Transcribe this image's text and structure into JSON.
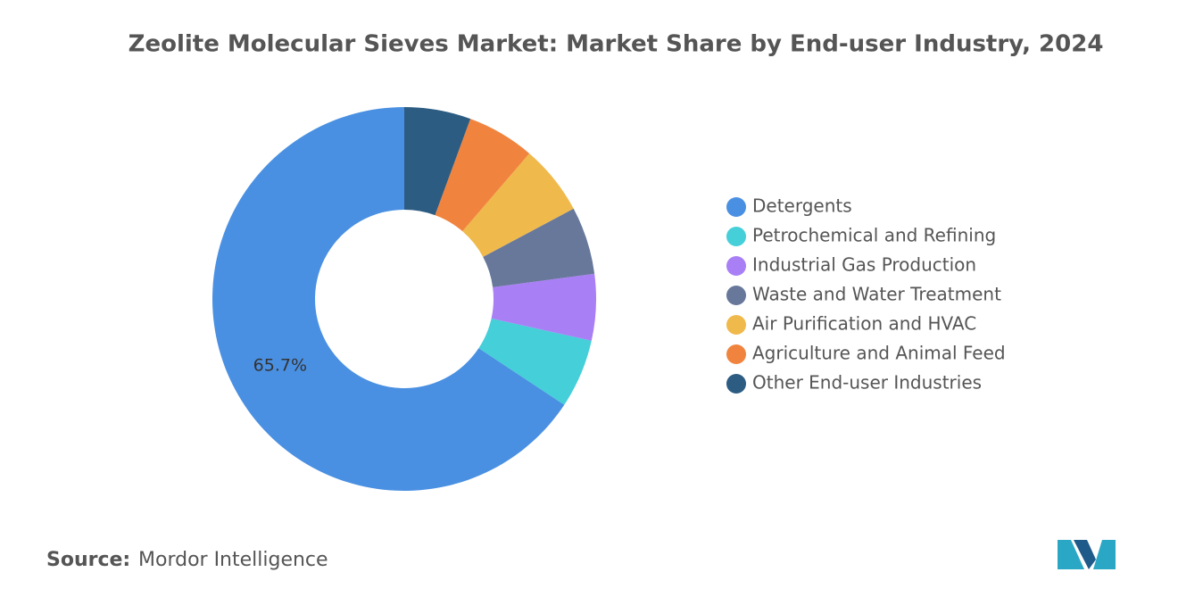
{
  "chart_data": {
    "type": "pie",
    "title": "Zeolite Molecular Sieves Market: Market Share by End-user Industry, 2024",
    "categories": [
      "Detergents",
      "Petrochemical and Refining",
      "Industrial Gas Production",
      "Waste and Water Treatment",
      "Air Purification and HVAC",
      "Agriculture and Animal Feed",
      "Other End-user Industries"
    ],
    "values": [
      65.7,
      5.8,
      5.6,
      5.7,
      5.9,
      5.7,
      5.6
    ],
    "value_labels": [
      "65.7%",
      null,
      null,
      null,
      null,
      null,
      null
    ],
    "colors": [
      "#4a90e2",
      "#45cfd9",
      "#a97ff5",
      "#67789a",
      "#f0b94b",
      "#f0843f",
      "#2d5c82"
    ],
    "legend": "right"
  },
  "source": {
    "label": "Source:",
    "text": "Mordor Intelligence"
  }
}
